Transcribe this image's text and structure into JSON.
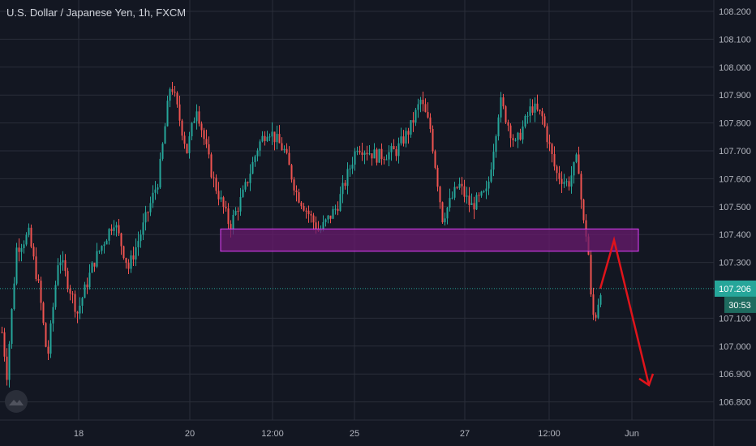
{
  "header": {
    "symbol_title": "U.S. Dollar / Japanese Yen, 1h, FXCM"
  },
  "price_axis": {
    "ticks": [
      "108.200",
      "108.100",
      "108.000",
      "107.900",
      "107.800",
      "107.700",
      "107.600",
      "107.500",
      "107.400",
      "107.300",
      "107.100",
      "107.000",
      "106.900",
      "106.800"
    ],
    "ylim": [
      106.74,
      108.24
    ]
  },
  "current_price": {
    "label": "107.206",
    "value": 107.206,
    "countdown": "30:53"
  },
  "time_axis": {
    "labels": [
      "18",
      "20",
      "12:00",
      "25",
      "27",
      "12:00",
      "Jun"
    ]
  },
  "colors": {
    "background": "#131722",
    "up": "#26a69a",
    "down": "#ef5350",
    "grid": "#2a2e39",
    "zone_fill": "#6a1b6f",
    "zone_stroke": "#e040fb",
    "arrow": "#e0141b",
    "axis_text": "#b2b5be",
    "price_tag": "#26a69a"
  },
  "chart_data": {
    "type": "candlestick",
    "title": "U.S. Dollar / Japanese Yen, 1h, FXCM",
    "ylim": [
      106.74,
      108.24
    ],
    "grid": true,
    "key_points": [
      {
        "x": 0,
        "close": 107.1
      },
      {
        "x": 8,
        "close": 106.9
      },
      {
        "x": 20,
        "close": 107.35
      },
      {
        "x": 35,
        "close": 107.4
      },
      {
        "x": 48,
        "close": 107.2
      },
      {
        "x": 58,
        "close": 106.95
      },
      {
        "x": 72,
        "close": 107.33
      },
      {
        "x": 95,
        "close": 107.12
      },
      {
        "x": 115,
        "close": 107.3
      },
      {
        "x": 140,
        "close": 107.45
      },
      {
        "x": 158,
        "close": 107.28
      },
      {
        "x": 175,
        "close": 107.42
      },
      {
        "x": 195,
        "close": 107.6
      },
      {
        "x": 210,
        "close": 107.95
      },
      {
        "x": 230,
        "close": 107.7
      },
      {
        "x": 242,
        "close": 107.86
      },
      {
        "x": 262,
        "close": 107.6
      },
      {
        "x": 283,
        "close": 107.43
      },
      {
        "x": 300,
        "close": 107.55
      },
      {
        "x": 318,
        "close": 107.72
      },
      {
        "x": 330,
        "close": 107.78
      },
      {
        "x": 350,
        "close": 107.7
      },
      {
        "x": 365,
        "close": 107.55
      },
      {
        "x": 393,
        "close": 107.41
      },
      {
        "x": 415,
        "close": 107.5
      },
      {
        "x": 440,
        "close": 107.72
      },
      {
        "x": 465,
        "close": 107.68
      },
      {
        "x": 488,
        "close": 107.7
      },
      {
        "x": 505,
        "close": 107.78
      },
      {
        "x": 518,
        "close": 107.88
      },
      {
        "x": 530,
        "close": 107.78
      },
      {
        "x": 545,
        "close": 107.46
      },
      {
        "x": 565,
        "close": 107.58
      },
      {
        "x": 580,
        "close": 107.5
      },
      {
        "x": 600,
        "close": 107.55
      },
      {
        "x": 616,
        "close": 107.88
      },
      {
        "x": 635,
        "close": 107.72
      },
      {
        "x": 655,
        "close": 107.86
      },
      {
        "x": 668,
        "close": 107.82
      },
      {
        "x": 685,
        "close": 107.62
      },
      {
        "x": 700,
        "close": 107.58
      },
      {
        "x": 712,
        "close": 107.68
      },
      {
        "x": 718,
        "close": 107.45
      },
      {
        "x": 724,
        "close": 107.38
      },
      {
        "x": 729,
        "close": 107.12
      },
      {
        "x": 733,
        "close": 107.1
      },
      {
        "x": 740,
        "close": 107.206
      }
    ],
    "zone": {
      "low": 107.34,
      "high": 107.42
    },
    "projection": [
      {
        "x": 740,
        "price": 107.206
      },
      {
        "x": 757,
        "price": 107.38
      },
      {
        "x": 800,
        "price": 106.86
      }
    ]
  }
}
